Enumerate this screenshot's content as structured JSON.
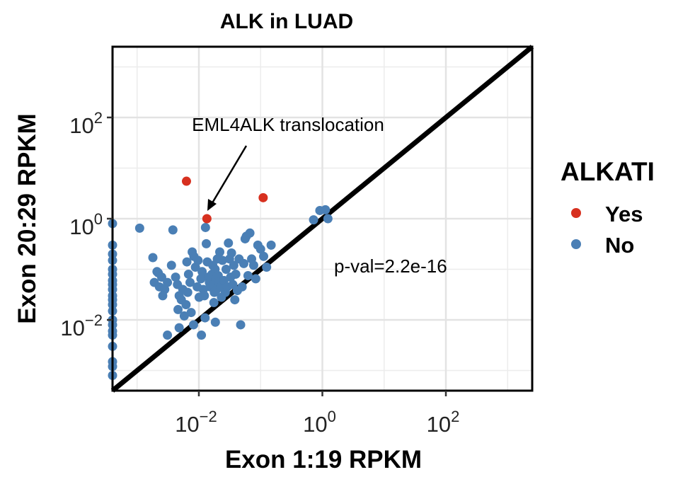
{
  "chart_data": {
    "type": "scatter",
    "title": "ALK in LUAD",
    "xlabel": "Exon 1:19 RPKM",
    "ylabel": "Exon 20:29 RPKM",
    "x_scale": "log10",
    "y_scale": "log10",
    "xlim": [
      0.0004,
      2500
    ],
    "ylim": [
      0.0004,
      2500
    ],
    "x_ticks": [
      {
        "base": "10",
        "exp": "−2",
        "value": 0.01
      },
      {
        "base": "10",
        "exp": "0",
        "value": 1
      },
      {
        "base": "10",
        "exp": "2",
        "value": 100
      }
    ],
    "y_ticks": [
      {
        "base": "10",
        "exp": "2",
        "value": 100
      },
      {
        "base": "10",
        "exp": "0",
        "value": 1
      },
      {
        "base": "10",
        "exp": "−2",
        "value": 0.01
      }
    ],
    "grid": true,
    "reference_line": "y = x",
    "legend": {
      "title": "ALKATI",
      "position": "right"
    },
    "annotations": {
      "arrow_label": "EML4ALK translocation",
      "pval": "p-val=2.2e-16"
    },
    "series": [
      {
        "name": "Yes",
        "color": "#d7301f",
        "points": [
          [
            0.0063,
            5.5
          ],
          [
            0.11,
            2.6
          ],
          [
            0.0135,
            1.0
          ]
        ]
      },
      {
        "name": "No",
        "color": "#4a7fb5",
        "points": [
          [
            0.0004,
            0.8
          ],
          [
            0.0004,
            0.3
          ],
          [
            0.0004,
            0.2
          ],
          [
            0.0004,
            0.15
          ],
          [
            0.0004,
            0.1
          ],
          [
            0.0004,
            0.08
          ],
          [
            0.0004,
            0.06
          ],
          [
            0.0004,
            0.05
          ],
          [
            0.0004,
            0.04
          ],
          [
            0.0004,
            0.03
          ],
          [
            0.0004,
            0.025
          ],
          [
            0.0004,
            0.02
          ],
          [
            0.0004,
            0.015
          ],
          [
            0.0004,
            0.01
          ],
          [
            0.0004,
            0.008
          ],
          [
            0.0004,
            0.006
          ],
          [
            0.0004,
            0.005
          ],
          [
            0.0004,
            0.003
          ],
          [
            0.0004,
            0.0015
          ],
          [
            0.0004,
            0.0012
          ],
          [
            0.0004,
            0.0008
          ],
          [
            0.0011,
            0.65
          ],
          [
            0.0018,
            0.17
          ],
          [
            0.0021,
            0.09
          ],
          [
            0.0022,
            0.085
          ],
          [
            0.0025,
            0.07
          ],
          [
            0.0019,
            0.055
          ],
          [
            0.0023,
            0.045
          ],
          [
            0.0028,
            0.04
          ],
          [
            0.0026,
            0.03
          ],
          [
            0.0031,
            0.055
          ],
          [
            0.0038,
            0.6
          ],
          [
            0.0036,
            0.12
          ],
          [
            0.0042,
            0.07
          ],
          [
            0.0045,
            0.05
          ],
          [
            0.0048,
            0.03
          ],
          [
            0.0052,
            0.025
          ],
          [
            0.0046,
            0.016
          ],
          [
            0.0058,
            0.012
          ],
          [
            0.0062,
            0.02
          ],
          [
            0.0055,
            0.04
          ],
          [
            0.0068,
            0.08
          ],
          [
            0.0072,
            0.055
          ],
          [
            0.0066,
            0.035
          ],
          [
            0.0075,
            0.014
          ],
          [
            0.0078,
            0.22
          ],
          [
            0.0064,
            0.14
          ],
          [
            0.0083,
            0.18
          ],
          [
            0.0088,
            0.11
          ],
          [
            0.0094,
            0.045
          ],
          [
            0.0101,
            0.028
          ],
          [
            0.0108,
            0.065
          ],
          [
            0.0097,
            0.15
          ],
          [
            0.0113,
            0.09
          ],
          [
            0.0118,
            0.04
          ],
          [
            0.0123,
            0.03
          ],
          [
            0.0128,
            0.67
          ],
          [
            0.0132,
            0.32
          ],
          [
            0.0137,
            0.14
          ],
          [
            0.0143,
            0.07
          ],
          [
            0.0148,
            0.055
          ],
          [
            0.0152,
            0.045
          ],
          [
            0.0158,
            0.06
          ],
          [
            0.0163,
            0.08
          ],
          [
            0.0168,
            0.12
          ],
          [
            0.0172,
            0.05
          ],
          [
            0.0178,
            0.035
          ],
          [
            0.0175,
            0.022
          ],
          [
            0.0183,
            0.1
          ],
          [
            0.0189,
            0.065
          ],
          [
            0.0194,
            0.04
          ],
          [
            0.0199,
            0.16
          ],
          [
            0.0206,
            0.075
          ],
          [
            0.0212,
            0.055
          ],
          [
            0.0218,
            0.22
          ],
          [
            0.0225,
            0.045
          ],
          [
            0.0232,
            0.028
          ],
          [
            0.0241,
            0.15
          ],
          [
            0.0255,
            0.06
          ],
          [
            0.0268,
            0.035
          ],
          [
            0.0276,
            0.1
          ],
          [
            0.0289,
            0.045
          ],
          [
            0.0301,
            0.33
          ],
          [
            0.0314,
            0.16
          ],
          [
            0.0327,
            0.07
          ],
          [
            0.0338,
            0.21
          ],
          [
            0.0355,
            0.05
          ],
          [
            0.0368,
            0.12
          ],
          [
            0.0382,
            0.025
          ],
          [
            0.0396,
            0.08
          ],
          [
            0.0421,
            0.038
          ],
          [
            0.0448,
            0.16
          ],
          [
            0.0475,
            0.008
          ],
          [
            0.0502,
            0.045
          ],
          [
            0.0534,
            0.13
          ],
          [
            0.0561,
            0.4
          ],
          [
            0.0588,
            0.45
          ],
          [
            0.0625,
            0.075
          ],
          [
            0.0671,
            0.52
          ],
          [
            0.0715,
            0.16
          ],
          [
            0.0772,
            0.12
          ],
          [
            0.0833,
            0.065
          ],
          [
            0.0902,
            0.3
          ],
          [
            0.1,
            0.25
          ],
          [
            0.112,
            0.18
          ],
          [
            0.125,
            0.11
          ],
          [
            0.148,
            0.3
          ],
          [
            0.0185,
            0.009
          ],
          [
            0.011,
            0.005
          ],
          [
            0.0082,
            0.008
          ],
          [
            0.0126,
            0.011
          ],
          [
            0.0048,
            0.007
          ],
          [
            0.0031,
            0.005
          ],
          [
            0.72,
            0.95
          ],
          [
            0.91,
            1.45
          ],
          [
            1.12,
            1.5
          ],
          [
            1.23,
            1.0
          ]
        ]
      }
    ]
  }
}
